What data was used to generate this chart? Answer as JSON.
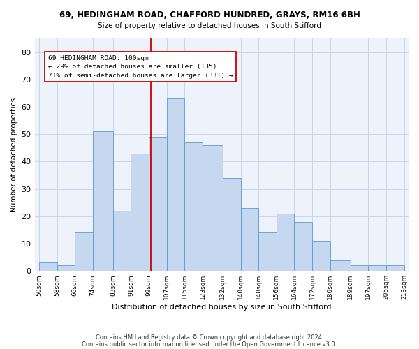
{
  "title": "69, HEDINGHAM ROAD, CHAFFORD HUNDRED, GRAYS, RM16 6BH",
  "subtitle": "Size of property relative to detached houses in South Stifford",
  "xlabel": "Distribution of detached houses by size in South Stifford",
  "ylabel": "Number of detached properties",
  "bar_color": "#c5d8f0",
  "bar_edge_color": "#5b9bd5",
  "grid_color": "#c8d4e8",
  "bg_color": "#eef2fa",
  "vline_x": 100,
  "vline_color": "#cc0000",
  "annotation_line1": "69 HEDINGHAM ROAD: 100sqm",
  "annotation_line2": "← 29% of detached houses are smaller (135)",
  "annotation_line3": "71% of semi-detached houses are larger (331) →",
  "annotation_box_color": "#cc0000",
  "bins": [
    50,
    58,
    66,
    74,
    83,
    91,
    99,
    107,
    115,
    123,
    132,
    140,
    148,
    156,
    164,
    172,
    180,
    189,
    197,
    205,
    213
  ],
  "bar_heights": [
    3,
    2,
    14,
    51,
    22,
    43,
    49,
    63,
    47,
    46,
    34,
    23,
    14,
    21,
    18,
    11,
    4,
    2,
    2,
    2
  ],
  "ylim": [
    0,
    85
  ],
  "yticks": [
    0,
    10,
    20,
    30,
    40,
    50,
    60,
    70,
    80
  ],
  "footer_line1": "Contains HM Land Registry data © Crown copyright and database right 2024.",
  "footer_line2": "Contains public sector information licensed under the Open Government Licence v3.0.",
  "figsize": [
    6.0,
    5.0
  ],
  "dpi": 100
}
